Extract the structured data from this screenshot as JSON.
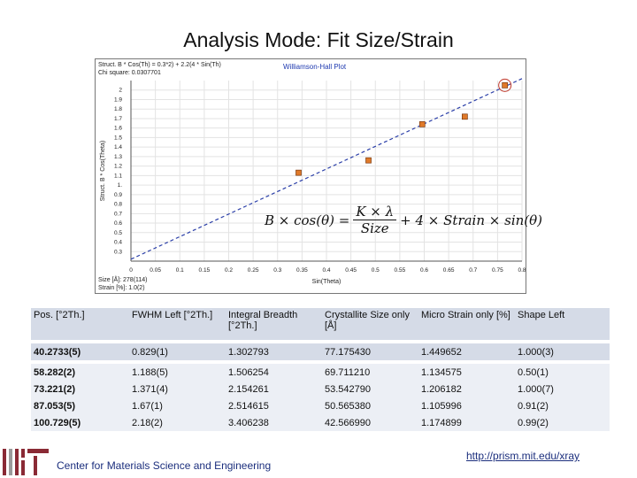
{
  "page_title": "Analysis Mode: Fit Size/Strain",
  "chart_data": {
    "type": "scatter",
    "title": "Williamson-Hall Plot",
    "equation_lines": [
      "Struct. B * Cos(Th) = 0.3*2) + 2.2(4 * Sin(Th)",
      "Chi square: 0.0307701"
    ],
    "legend_lines": [
      "Size [Å]: 278(114)",
      "Strain [%]: 1.0(2)"
    ],
    "xlabel": "Sin(Theta)",
    "ylabel": "Struct. B * Cos(Theta)",
    "xlim": [
      0,
      0.8
    ],
    "ylim": [
      0.2,
      2.1
    ],
    "x_ticks": [
      "0",
      "0.05",
      "0.1",
      "0.15",
      "0.2",
      "0.25",
      "0.3",
      "0.35",
      "0.4",
      "0.45",
      "0.5",
      "0.55",
      "0.6",
      "0.65",
      "0.7",
      "0.75",
      "0.8"
    ],
    "y_ticks": [
      "0.3",
      "0.4",
      "0.5",
      "0.6",
      "0.7",
      "0.8",
      "0.9",
      "1.",
      "1.1",
      "1.2",
      "1.3",
      "1.4",
      "1.5",
      "1.6",
      "1.7",
      "1.8",
      "1.9",
      "2"
    ],
    "points": [
      {
        "x": 0.343,
        "y": 1.13
      },
      {
        "x": 0.486,
        "y": 1.26
      },
      {
        "x": 0.596,
        "y": 1.64
      },
      {
        "x": 0.683,
        "y": 1.72
      },
      {
        "x": 0.765,
        "y": 2.05
      }
    ],
    "highlighted_point": 4,
    "fit_line": {
      "x": [
        0,
        0.8
      ],
      "y": [
        0.22,
        2.12
      ]
    },
    "point_color": "#e07a2a",
    "line_color": "#2b3fa8",
    "equation": {
      "lhs": "B × cos(θ) =",
      "frac1_num": "K × λ",
      "frac1_den": "Size",
      "middle": "+ 4 × Strain × sin(θ)"
    }
  },
  "table": {
    "headers": [
      "Pos. [°2Th.]",
      "FWHM Left [°2Th.]",
      "Integral Breadth [°2Th.]",
      "Crystallite Size only [Å]",
      "Micro Strain only [%]",
      "Shape Left"
    ],
    "rows": [
      [
        "40.2733(5)",
        "0.829(1)",
        "1.302793",
        "77.175430",
        "1.449652",
        "1.000(3)"
      ],
      [
        "58.282(2)",
        "1.188(5)",
        "1.506254",
        "69.711210",
        "1.134575",
        "0.50(1)"
      ],
      [
        "73.221(2)",
        "1.371(4)",
        "2.154261",
        "53.542790",
        "1.206182",
        "1.000(7)"
      ],
      [
        "87.053(5)",
        "1.67(1)",
        "2.514615",
        "50.565380",
        "1.105996",
        "0.91(2)"
      ],
      [
        "100.729(5)",
        "2.18(2)",
        "3.406238",
        "42.566990",
        "1.174899",
        "0.99(2)"
      ]
    ]
  },
  "footer": {
    "center_name": "Center for Materials Science and Engineering",
    "url": "http://prism.mit.edu/xray"
  },
  "colors": {
    "header_bg": "#d5dbe7",
    "row_bg": "#eceff5",
    "footer_text": "#1b2e7d",
    "logo": "#8a2a35"
  }
}
